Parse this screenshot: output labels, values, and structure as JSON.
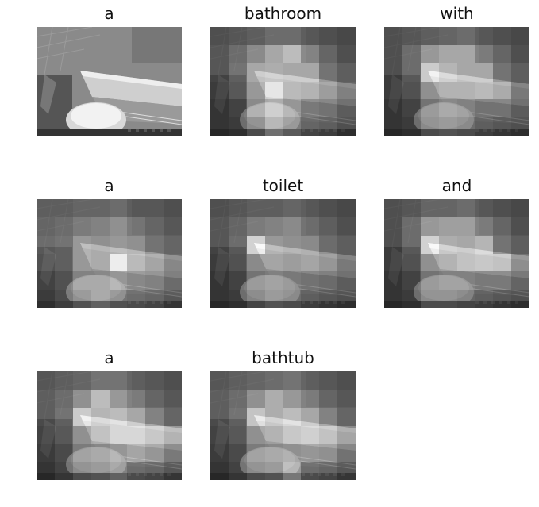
{
  "panels": [
    {
      "word": "a",
      "attention": null
    },
    {
      "word": "bathroom",
      "attention": [
        [
          0.1,
          0.15,
          0.2,
          0.3,
          0.3,
          0.2,
          0.15,
          0.1
        ],
        [
          0.15,
          0.3,
          0.5,
          0.7,
          0.85,
          0.5,
          0.3,
          0.15
        ],
        [
          0.15,
          0.35,
          0.7,
          0.75,
          0.7,
          0.7,
          0.35,
          0.2
        ],
        [
          0.1,
          0.3,
          0.6,
          0.95,
          0.65,
          0.6,
          0.45,
          0.25
        ],
        [
          0.05,
          0.15,
          0.5,
          0.7,
          0.55,
          0.35,
          0.3,
          0.15
        ],
        [
          0.05,
          0.1,
          0.3,
          0.55,
          0.4,
          0.25,
          0.2,
          0.1
        ]
      ]
    },
    {
      "word": "with",
      "attention": [
        [
          0.1,
          0.15,
          0.2,
          0.25,
          0.3,
          0.2,
          0.15,
          0.1
        ],
        [
          0.1,
          0.3,
          0.6,
          0.7,
          0.7,
          0.45,
          0.3,
          0.15
        ],
        [
          0.1,
          0.3,
          0.95,
          0.8,
          0.7,
          0.7,
          0.35,
          0.2
        ],
        [
          0.1,
          0.25,
          0.55,
          0.6,
          0.6,
          0.65,
          0.55,
          0.2
        ],
        [
          0.05,
          0.15,
          0.35,
          0.45,
          0.4,
          0.3,
          0.3,
          0.15
        ],
        [
          0.05,
          0.1,
          0.3,
          0.35,
          0.3,
          0.2,
          0.15,
          0.1
        ]
      ]
    },
    {
      "word": "a",
      "attention": [
        [
          0.2,
          0.2,
          0.25,
          0.25,
          0.3,
          0.2,
          0.2,
          0.15
        ],
        [
          0.25,
          0.3,
          0.4,
          0.45,
          0.55,
          0.4,
          0.3,
          0.2
        ],
        [
          0.3,
          0.35,
          0.6,
          0.55,
          0.6,
          0.55,
          0.35,
          0.25
        ],
        [
          0.25,
          0.35,
          0.6,
          0.55,
          1.0,
          0.65,
          0.5,
          0.3
        ],
        [
          0.15,
          0.25,
          0.45,
          0.45,
          0.55,
          0.45,
          0.4,
          0.25
        ],
        [
          0.1,
          0.2,
          0.35,
          0.45,
          0.35,
          0.3,
          0.25,
          0.15
        ]
      ]
    },
    {
      "word": "toilet",
      "attention": [
        [
          0.1,
          0.15,
          0.2,
          0.2,
          0.25,
          0.2,
          0.15,
          0.1
        ],
        [
          0.15,
          0.25,
          0.4,
          0.45,
          0.5,
          0.35,
          0.25,
          0.15
        ],
        [
          0.15,
          0.3,
          1.0,
          0.6,
          0.55,
          0.5,
          0.3,
          0.2
        ],
        [
          0.1,
          0.25,
          0.5,
          0.5,
          0.45,
          0.5,
          0.4,
          0.2
        ],
        [
          0.05,
          0.15,
          0.35,
          0.4,
          0.35,
          0.3,
          0.25,
          0.15
        ],
        [
          0.05,
          0.1,
          0.25,
          0.35,
          0.3,
          0.2,
          0.15,
          0.1
        ]
      ]
    },
    {
      "word": "and",
      "attention": [
        [
          0.1,
          0.15,
          0.25,
          0.25,
          0.3,
          0.2,
          0.15,
          0.1
        ],
        [
          0.1,
          0.3,
          0.6,
          0.65,
          0.65,
          0.45,
          0.3,
          0.15
        ],
        [
          0.1,
          0.3,
          1.0,
          0.75,
          0.7,
          0.8,
          0.35,
          0.2
        ],
        [
          0.1,
          0.25,
          0.55,
          0.6,
          0.7,
          0.75,
          0.7,
          0.35
        ],
        [
          0.05,
          0.15,
          0.35,
          0.4,
          0.4,
          0.35,
          0.35,
          0.2
        ],
        [
          0.05,
          0.1,
          0.3,
          0.3,
          0.25,
          0.2,
          0.15,
          0.1
        ]
      ]
    },
    {
      "word": "a",
      "attention": [
        [
          0.15,
          0.2,
          0.25,
          0.35,
          0.35,
          0.25,
          0.2,
          0.15
        ],
        [
          0.2,
          0.3,
          0.55,
          0.85,
          0.6,
          0.45,
          0.3,
          0.2
        ],
        [
          0.2,
          0.35,
          0.95,
          0.8,
          0.85,
          0.7,
          0.45,
          0.25
        ],
        [
          0.15,
          0.3,
          0.55,
          0.7,
          0.85,
          0.85,
          0.75,
          0.6
        ],
        [
          0.1,
          0.2,
          0.4,
          0.45,
          0.55,
          0.65,
          0.55,
          0.35
        ],
        [
          0.05,
          0.15,
          0.3,
          0.35,
          0.45,
          0.3,
          0.25,
          0.15
        ]
      ]
    },
    {
      "word": "bathtub",
      "attention": [
        [
          0.15,
          0.2,
          0.25,
          0.3,
          0.35,
          0.25,
          0.2,
          0.15
        ],
        [
          0.2,
          0.3,
          0.55,
          0.75,
          0.6,
          0.45,
          0.3,
          0.2
        ],
        [
          0.2,
          0.35,
          0.9,
          0.75,
          0.85,
          0.7,
          0.45,
          0.25
        ],
        [
          0.15,
          0.3,
          0.55,
          0.6,
          0.75,
          0.8,
          0.7,
          0.5
        ],
        [
          0.1,
          0.2,
          0.4,
          0.45,
          0.5,
          0.55,
          0.5,
          0.3
        ],
        [
          0.05,
          0.15,
          0.3,
          0.35,
          0.6,
          0.3,
          0.25,
          0.15
        ]
      ]
    }
  ]
}
